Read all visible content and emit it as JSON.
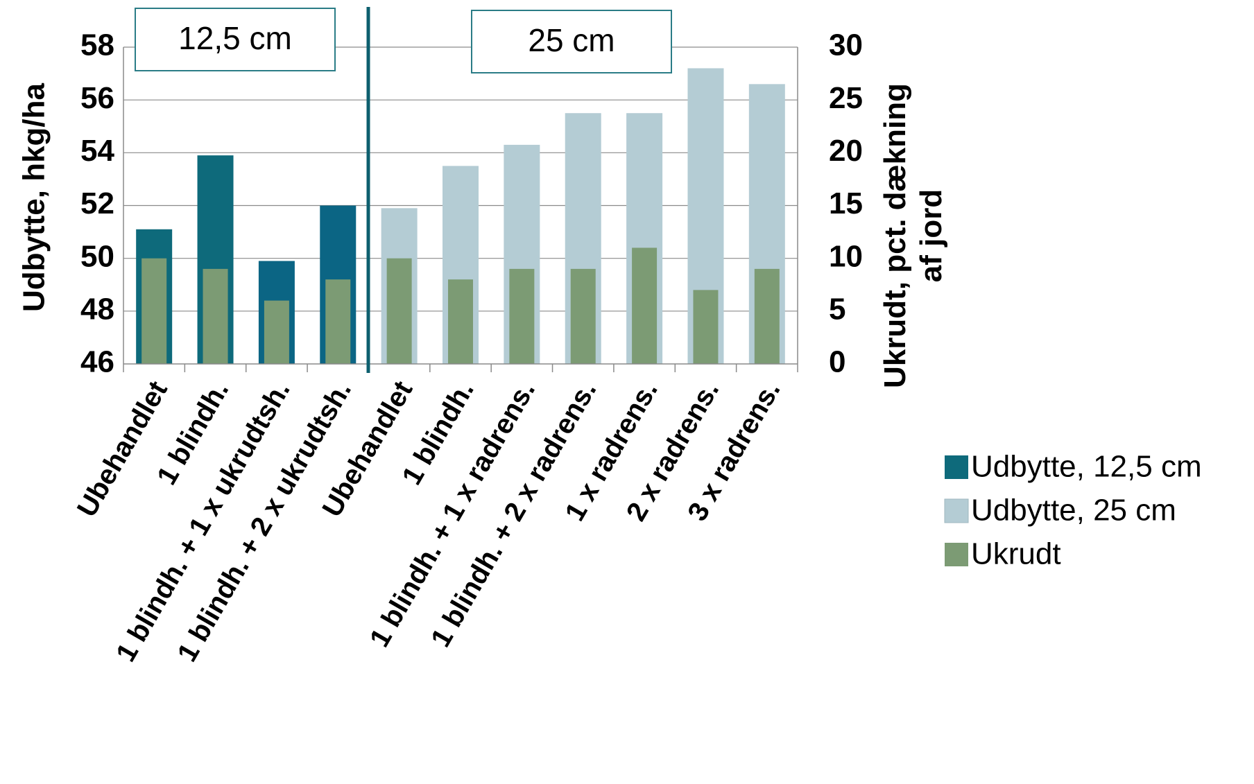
{
  "chart_data": {
    "type": "bar",
    "categories": [
      "Ubehandlet",
      "1 blindh.",
      "1 blindh. + 1 x ukrudtsh.",
      "1 blindh. + 2 x ukrudtsh.",
      "Ubehandlet",
      "1 blindh.",
      "1 blindh. + 1 x radrens.",
      "1 blindh. + 2 x radrens.",
      "1 x radrens.",
      "2 x radrens.",
      "3 x radrens."
    ],
    "series": [
      {
        "name": "Udbytte, 12,5 cm",
        "axis": "left",
        "values": [
          51.1,
          53.9,
          49.9,
          52.0,
          null,
          null,
          null,
          null,
          null,
          null,
          null
        ]
      },
      {
        "name": "Udbytte, 25 cm",
        "axis": "left",
        "values": [
          null,
          null,
          null,
          null,
          51.9,
          53.5,
          54.3,
          55.5,
          55.5,
          57.2,
          56.6
        ]
      },
      {
        "name": "Ukrudt",
        "axis": "right",
        "values": [
          10,
          9,
          6,
          8,
          10,
          8,
          9,
          9,
          11,
          7,
          9
        ]
      }
    ],
    "ylabel": "Udbytte, hkg/ha",
    "ylabel_right": "Ukrudt, pct. dækning af jord",
    "ylabel_right_lines": [
      "Ukrudt, pct. dækning",
      "af jord"
    ],
    "ylim": [
      46,
      58
    ],
    "ylim_right": [
      0,
      30
    ],
    "yticks": [
      "46",
      "48",
      "50",
      "52",
      "54",
      "56",
      "58"
    ],
    "yticks_right": [
      "0",
      "5",
      "10",
      "15",
      "20",
      "25",
      "30"
    ],
    "group_labels": [
      "12,5 cm",
      "25 cm"
    ],
    "colors": {
      "udbytte_12_5": "#0e6a7b",
      "udbytte_12_5_alt": "#0b6584",
      "udbytte_25": "#b4ccd4",
      "ukrudt": "#7c9b74",
      "gridline": "#8a8a8a",
      "divider": "#0d5f6e",
      "box_border": "#2a7c86"
    },
    "grid": true,
    "legend_position": "right"
  }
}
